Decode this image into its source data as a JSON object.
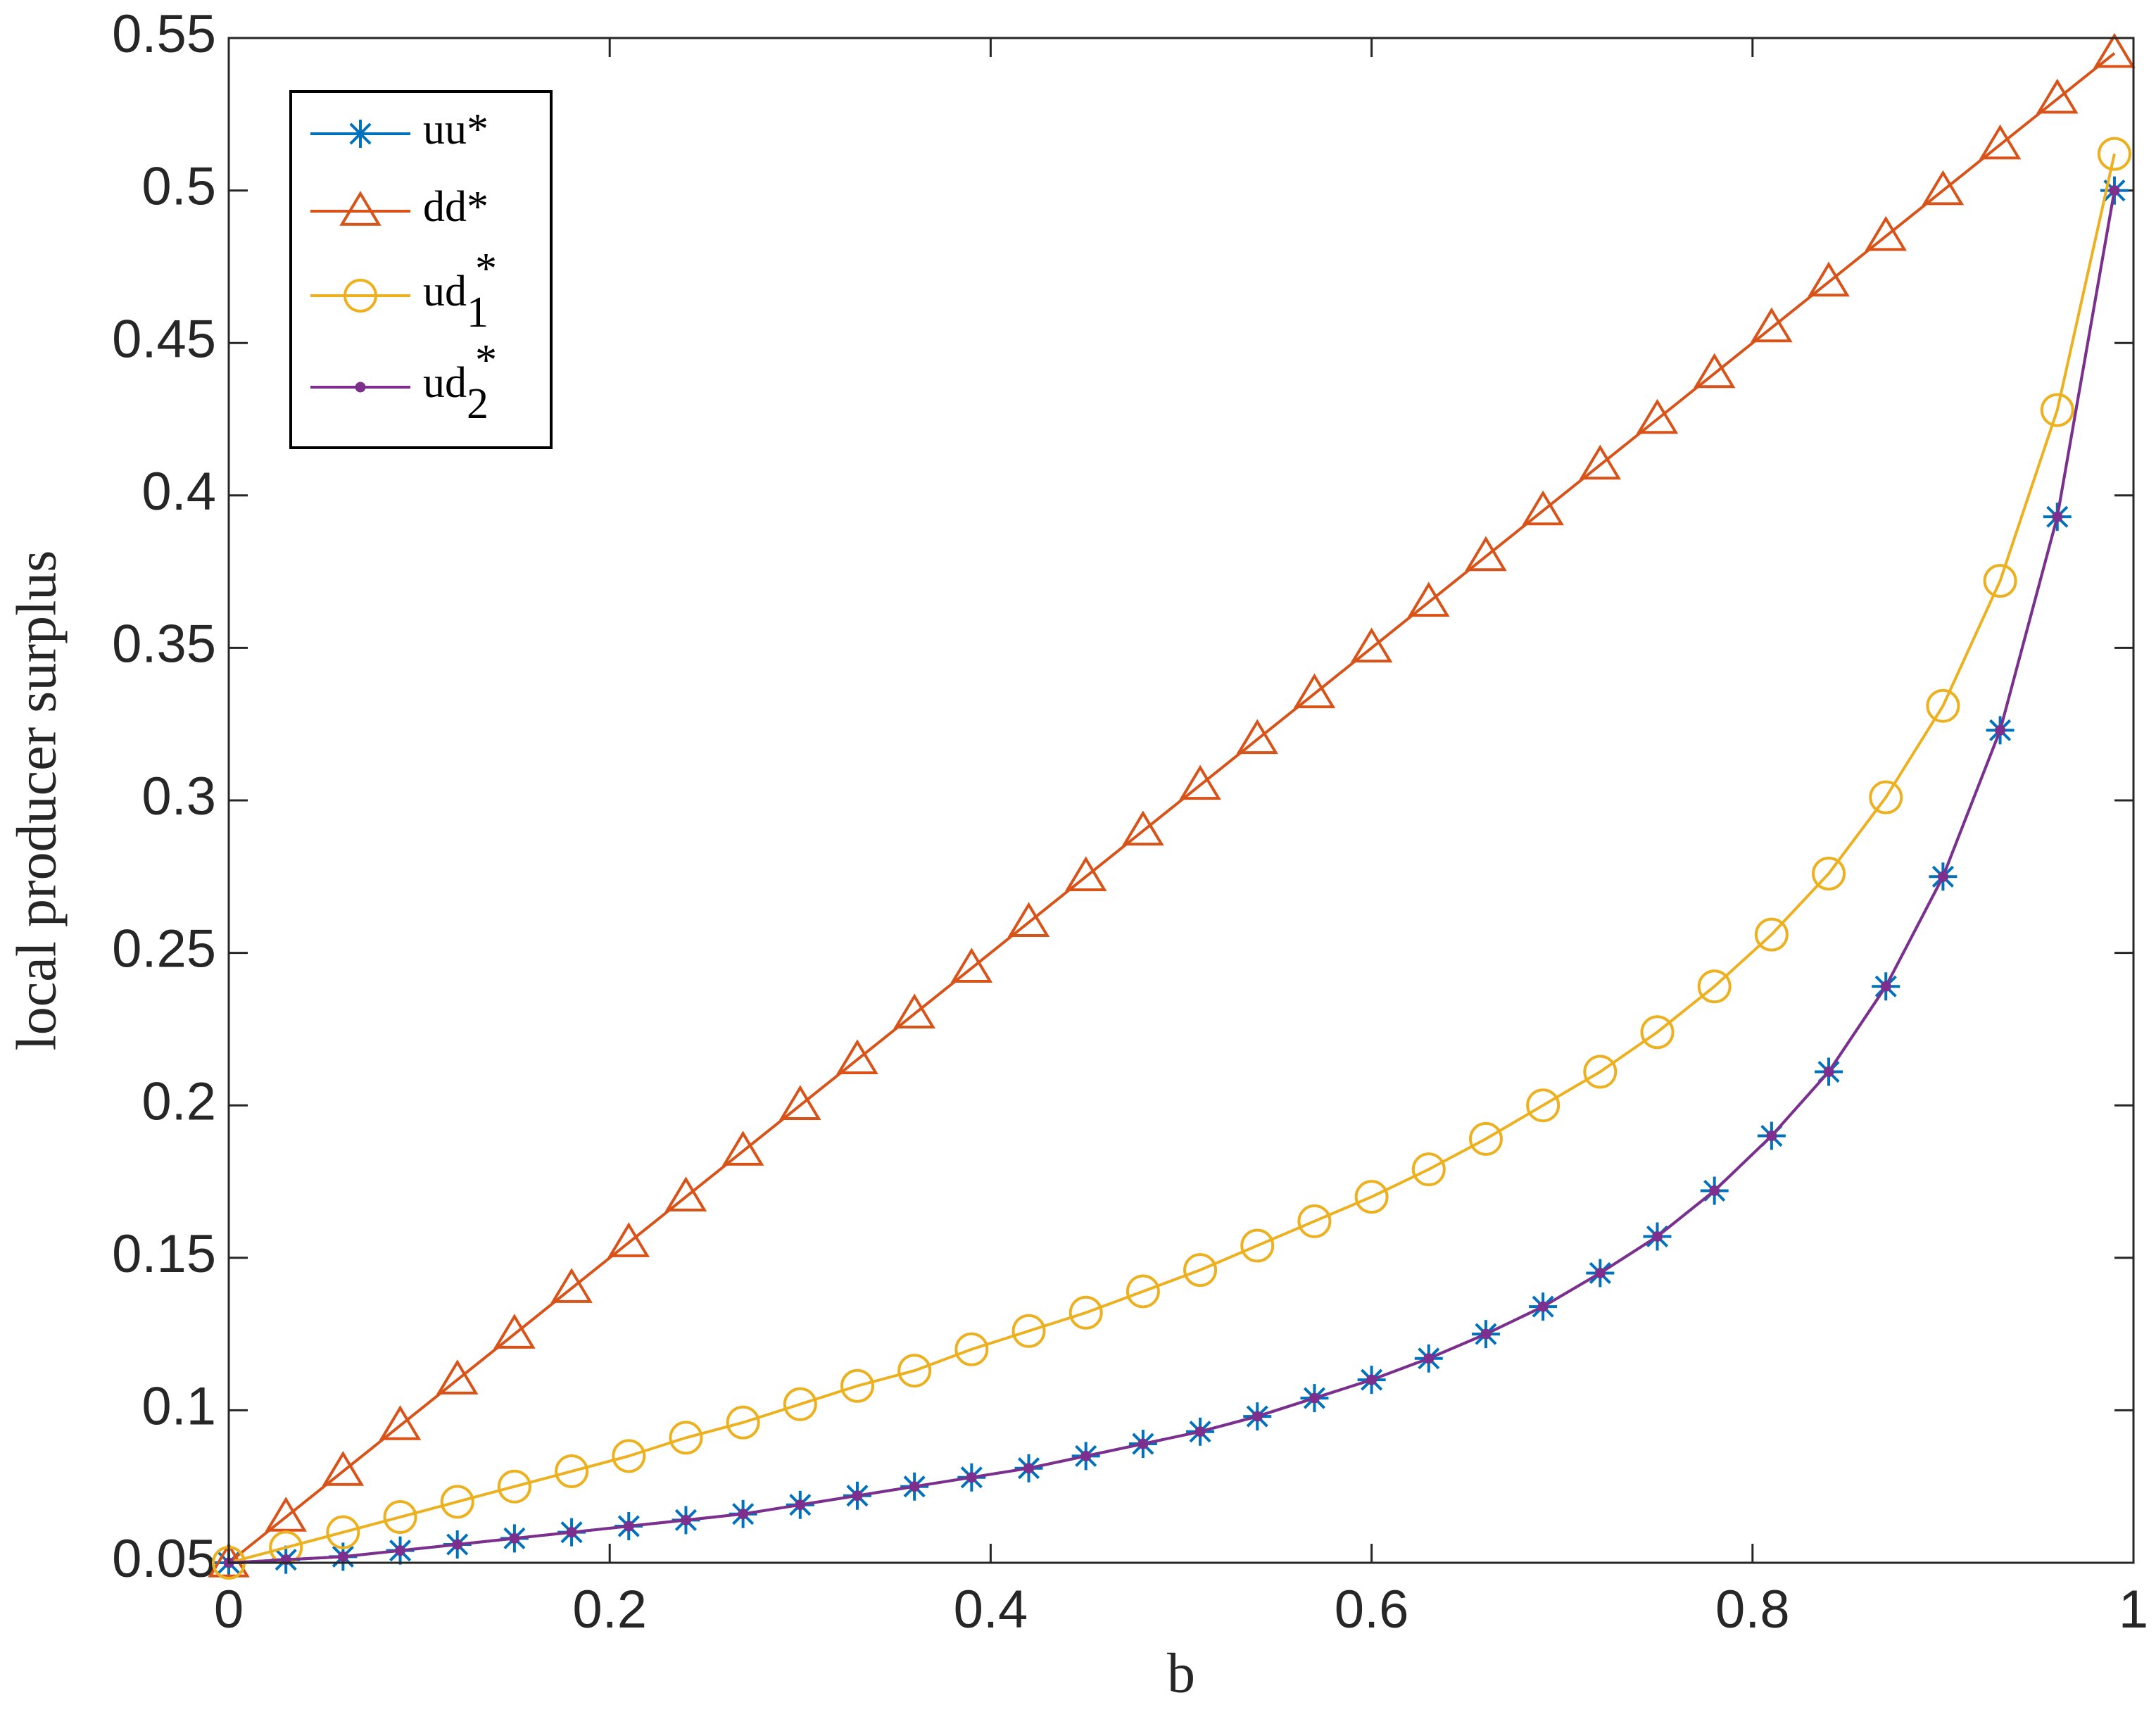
{
  "chart_data": {
    "type": "line",
    "xlabel": "b",
    "ylabel": "local producer surplus",
    "x": [
      0,
      0.03,
      0.06,
      0.09,
      0.12,
      0.15,
      0.18,
      0.21,
      0.24,
      0.27,
      0.3,
      0.33,
      0.36,
      0.39,
      0.42,
      0.45,
      0.48,
      0.51,
      0.54,
      0.57,
      0.6,
      0.63,
      0.66,
      0.69,
      0.72,
      0.75,
      0.78,
      0.81,
      0.84,
      0.87,
      0.9,
      0.93,
      0.96,
      0.99
    ],
    "series": [
      {
        "name": "uu*",
        "color": "#0072bd",
        "marker": "star",
        "values": [
          0.05,
          0.051,
          0.052,
          0.054,
          0.056,
          0.058,
          0.06,
          0.062,
          0.064,
          0.066,
          0.069,
          0.072,
          0.075,
          0.078,
          0.081,
          0.085,
          0.089,
          0.093,
          0.098,
          0.104,
          0.11,
          0.117,
          0.125,
          0.134,
          0.145,
          0.157,
          0.172,
          0.19,
          0.211,
          0.239,
          0.275,
          0.323,
          0.393,
          0.5
        ]
      },
      {
        "name": "dd*",
        "color": "#d95319",
        "marker": "triangle",
        "values": [
          0.05,
          0.065,
          0.08,
          0.095,
          0.11,
          0.125,
          0.14,
          0.155,
          0.17,
          0.185,
          0.2,
          0.215,
          0.23,
          0.245,
          0.26,
          0.275,
          0.29,
          0.305,
          0.32,
          0.335,
          0.35,
          0.365,
          0.38,
          0.395,
          0.41,
          0.425,
          0.44,
          0.455,
          0.47,
          0.485,
          0.5,
          0.515,
          0.53,
          0.545
        ]
      },
      {
        "name": "ud1*",
        "color": "#edb120",
        "marker": "circle",
        "values": [
          0.05,
          0.055,
          0.06,
          0.065,
          0.07,
          0.075,
          0.08,
          0.085,
          0.091,
          0.096,
          0.102,
          0.108,
          0.113,
          0.12,
          0.126,
          0.132,
          0.139,
          0.146,
          0.154,
          0.162,
          0.17,
          0.179,
          0.189,
          0.2,
          0.211,
          0.224,
          0.239,
          0.256,
          0.276,
          0.301,
          0.331,
          0.372,
          0.428,
          0.512
        ]
      },
      {
        "name": "ud2*",
        "color": "#7e2f8e",
        "marker": "dot",
        "values": [
          0.05,
          0.051,
          0.052,
          0.054,
          0.056,
          0.058,
          0.06,
          0.062,
          0.064,
          0.066,
          0.069,
          0.072,
          0.075,
          0.078,
          0.081,
          0.085,
          0.089,
          0.093,
          0.098,
          0.104,
          0.11,
          0.117,
          0.125,
          0.134,
          0.145,
          0.157,
          0.172,
          0.19,
          0.211,
          0.239,
          0.275,
          0.323,
          0.393,
          0.5
        ]
      }
    ],
    "xlim": [
      0,
      1
    ],
    "xticks": [
      0,
      0.2,
      0.4,
      0.6,
      0.8,
      1
    ],
    "ylim": [
      0.05,
      0.55
    ],
    "yticks": [
      0.05,
      0.1,
      0.15,
      0.2,
      0.25,
      0.3,
      0.35,
      0.4,
      0.45,
      0.5,
      0.55
    ],
    "grid": false,
    "legend": "upper left"
  }
}
